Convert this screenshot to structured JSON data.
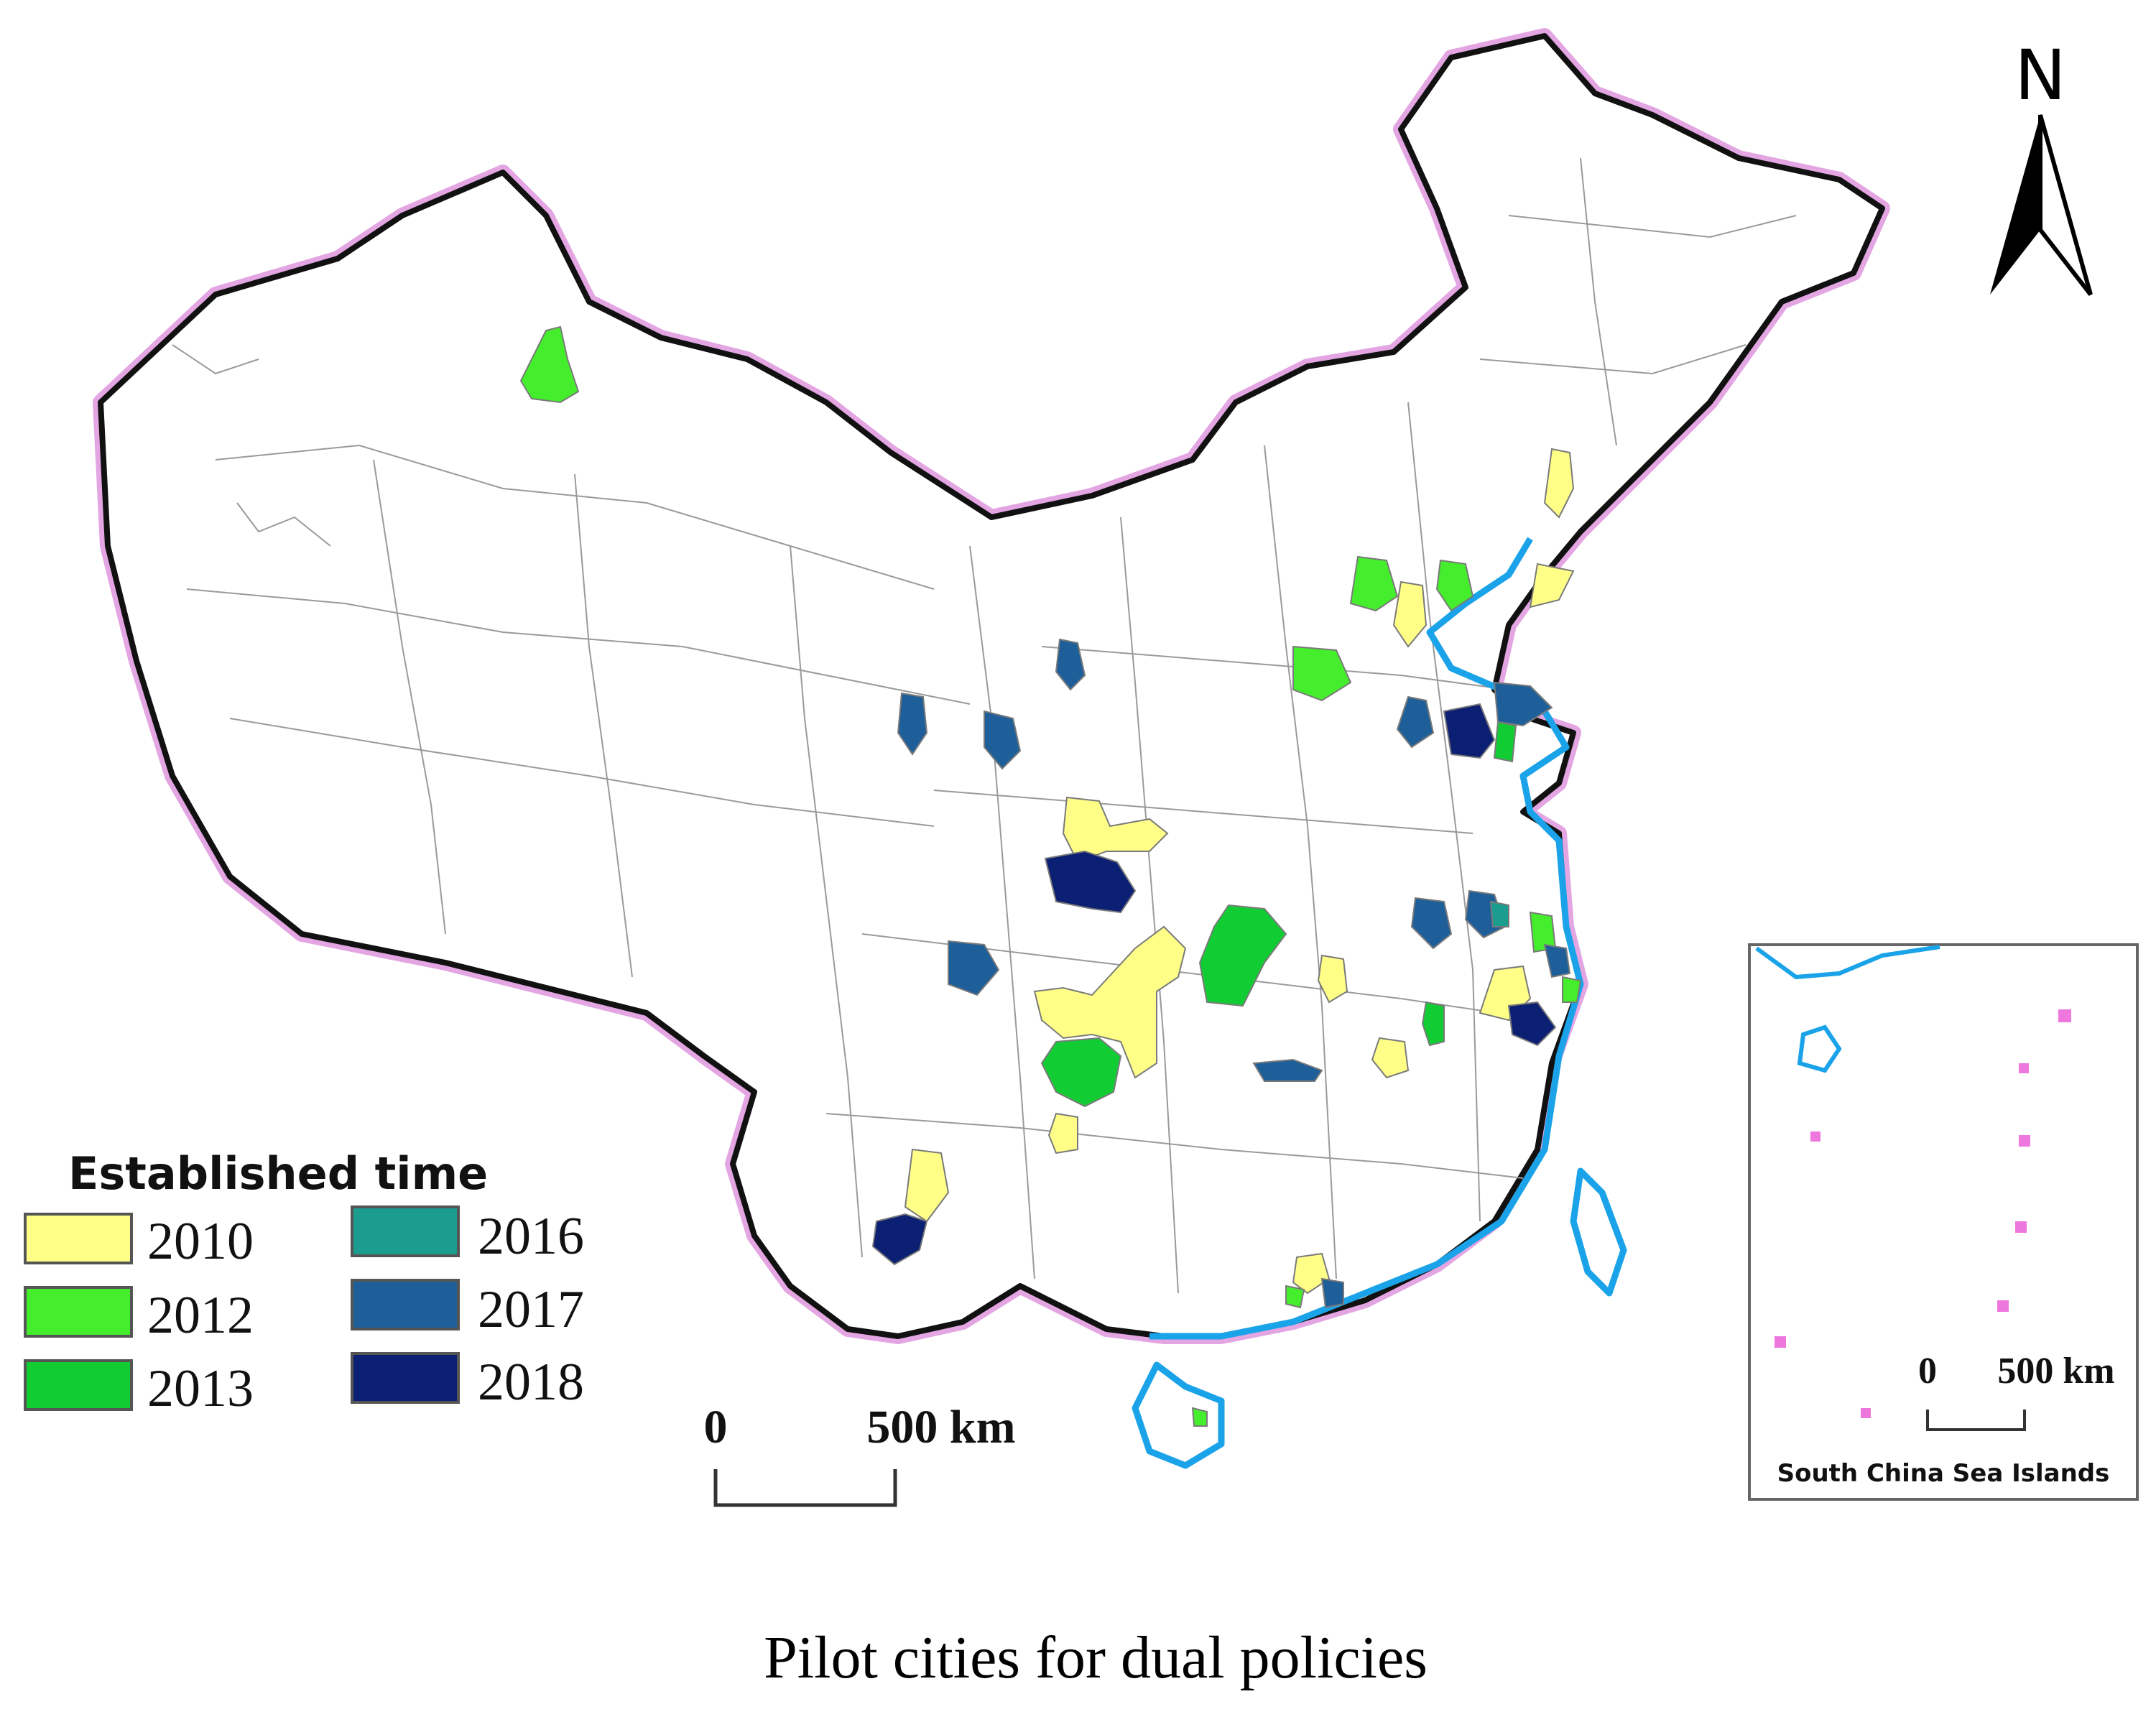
{
  "map": {
    "subject": "China prefecture-level cities",
    "caption": "Pilot cities for dual policies",
    "north_arrow_label": "N",
    "scale_bar": {
      "start_label": "0",
      "end_label": "500 km"
    },
    "inset": {
      "title": "South China Sea Islands",
      "scale_bar": {
        "start_label": "0",
        "end_label": "500 km"
      }
    },
    "legend": {
      "title": "Established time",
      "items": [
        {
          "label": "2010",
          "color": "#ffff88"
        },
        {
          "label": "2012",
          "color": "#44ee2c"
        },
        {
          "label": "2013",
          "color": "#12cc33"
        },
        {
          "label": "2016",
          "color": "#1a9d8f"
        },
        {
          "label": "2017",
          "color": "#1f5f99"
        },
        {
          "label": "2018",
          "color": "#0b1f73"
        }
      ]
    },
    "colors": {
      "border": "#111111",
      "border_halo": "#e3a6e3",
      "coastline": "#1aa3e8",
      "inset_islands": "#ee77dd"
    }
  }
}
